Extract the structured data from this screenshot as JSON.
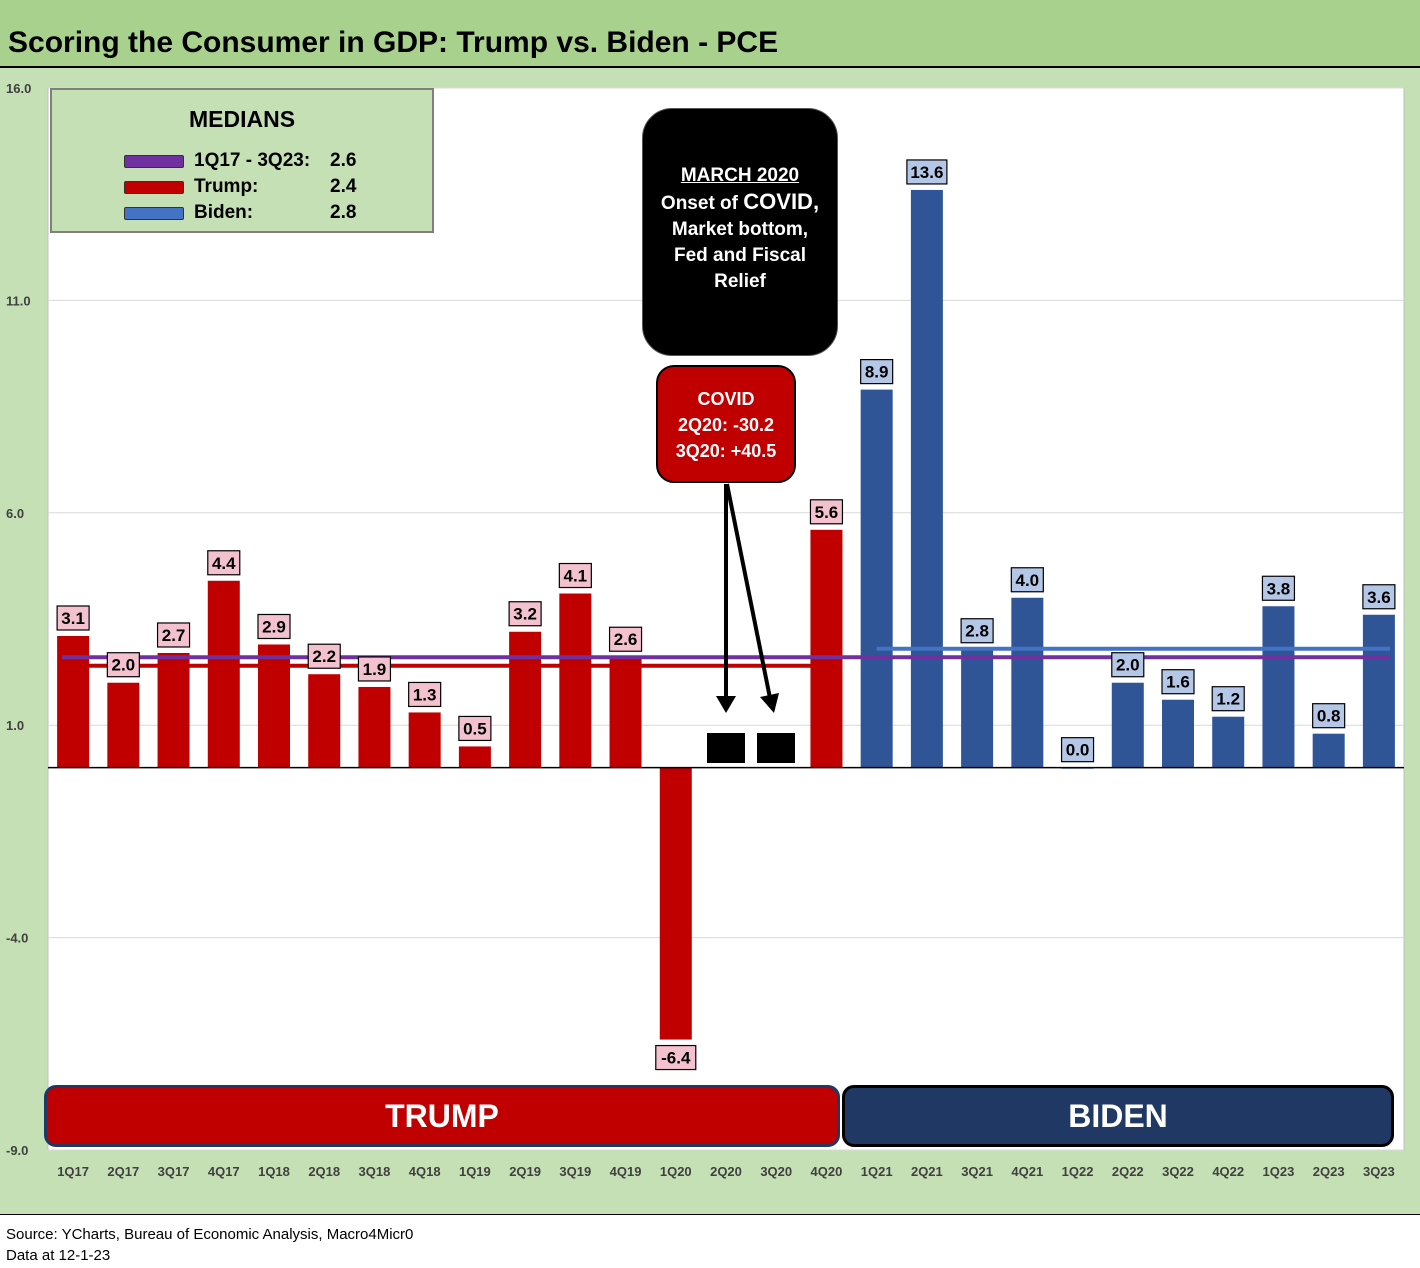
{
  "title": "Scoring the Consumer in GDP: Trump vs. Biden - PCE",
  "colors": {
    "trump": "#c00000",
    "biden": "#2f5597",
    "median_all": "#7030a0",
    "median_trump": "#c00000",
    "median_biden": "#4472c4",
    "trump_label_bg": "#f4c2cf",
    "biden_label_bg": "#b4c7e7"
  },
  "medians": {
    "title": "MEDIANS",
    "items": [
      {
        "label": "1Q17 - 3Q23:",
        "value": "2.6",
        "color": "#7030a0"
      },
      {
        "label": "Trump:",
        "value": "2.4",
        "color": "#c00000"
      },
      {
        "label": "Biden:",
        "value": "2.8",
        "color": "#4472c4"
      }
    ]
  },
  "annotations": {
    "march": {
      "l1": "MARCH 2020",
      "l2a": "Onset of ",
      "l2b": "COVID,",
      "l3": "Market bottom,",
      "l4": "Fed and Fiscal",
      "l5": "Relief"
    },
    "covid": {
      "l1": "COVID",
      "l2": "2Q20: -30.2",
      "l3": "3Q20: +40.5"
    }
  },
  "eras": {
    "trump": "TRUMP",
    "biden": "BIDEN"
  },
  "source": {
    "line1": "Source: YCharts, Bureau of Economic Analysis, Macro4Micr0",
    "line2": "Data at 12-1-23"
  },
  "chart_data": {
    "type": "bar",
    "title": "Scoring the Consumer in GDP: Trump vs. Biden - PCE",
    "ylim": [
      -9.0,
      16.0
    ],
    "yticks": [
      "16.0",
      "11.0",
      "6.0",
      "1.0",
      "-4.0",
      "-9.0"
    ],
    "ytick_values": [
      16,
      11,
      6,
      1,
      -4,
      -9
    ],
    "baseline": 0,
    "grid": true,
    "categories": [
      "1Q17",
      "2Q17",
      "3Q17",
      "4Q17",
      "1Q18",
      "2Q18",
      "3Q18",
      "4Q18",
      "1Q19",
      "2Q19",
      "3Q19",
      "4Q19",
      "1Q20",
      "2Q20",
      "3Q20",
      "4Q20",
      "1Q21",
      "2Q21",
      "3Q21",
      "4Q21",
      "1Q22",
      "2Q22",
      "3Q22",
      "4Q22",
      "1Q23",
      "2Q23",
      "3Q23"
    ],
    "values": [
      3.1,
      2.0,
      2.7,
      4.4,
      2.9,
      2.2,
      1.9,
      1.3,
      0.5,
      3.2,
      4.1,
      2.6,
      -6.4,
      null,
      null,
      5.6,
      8.9,
      13.6,
      2.8,
      4.0,
      0.0,
      2.0,
      1.6,
      1.2,
      3.8,
      0.8,
      3.6
    ],
    "labels": [
      "3.1",
      "2.0",
      "2.7",
      "4.4",
      "2.9",
      "2.2",
      "1.9",
      "1.3",
      "0.5",
      "3.2",
      "4.1",
      "2.6",
      "-6.4",
      "",
      "",
      "5.6",
      "8.9",
      "13.6",
      "2.8",
      "4.0",
      "0.0",
      "2.0",
      "1.6",
      "1.2",
      "3.8",
      "0.8",
      "3.6"
    ],
    "president": [
      "trump",
      "trump",
      "trump",
      "trump",
      "trump",
      "trump",
      "trump",
      "trump",
      "trump",
      "trump",
      "trump",
      "trump",
      "trump",
      "trump",
      "trump",
      "trump",
      "biden",
      "biden",
      "biden",
      "biden",
      "biden",
      "biden",
      "biden",
      "biden",
      "biden",
      "biden",
      "biden"
    ],
    "median_lines": [
      {
        "name": "1Q17 - 3Q23",
        "value": 2.6,
        "from": "1Q17",
        "to": "3Q23"
      },
      {
        "name": "Trump",
        "value": 2.4,
        "from": "1Q17",
        "to": "4Q20"
      },
      {
        "name": "Biden",
        "value": 2.8,
        "from": "1Q21",
        "to": "3Q23"
      }
    ]
  }
}
